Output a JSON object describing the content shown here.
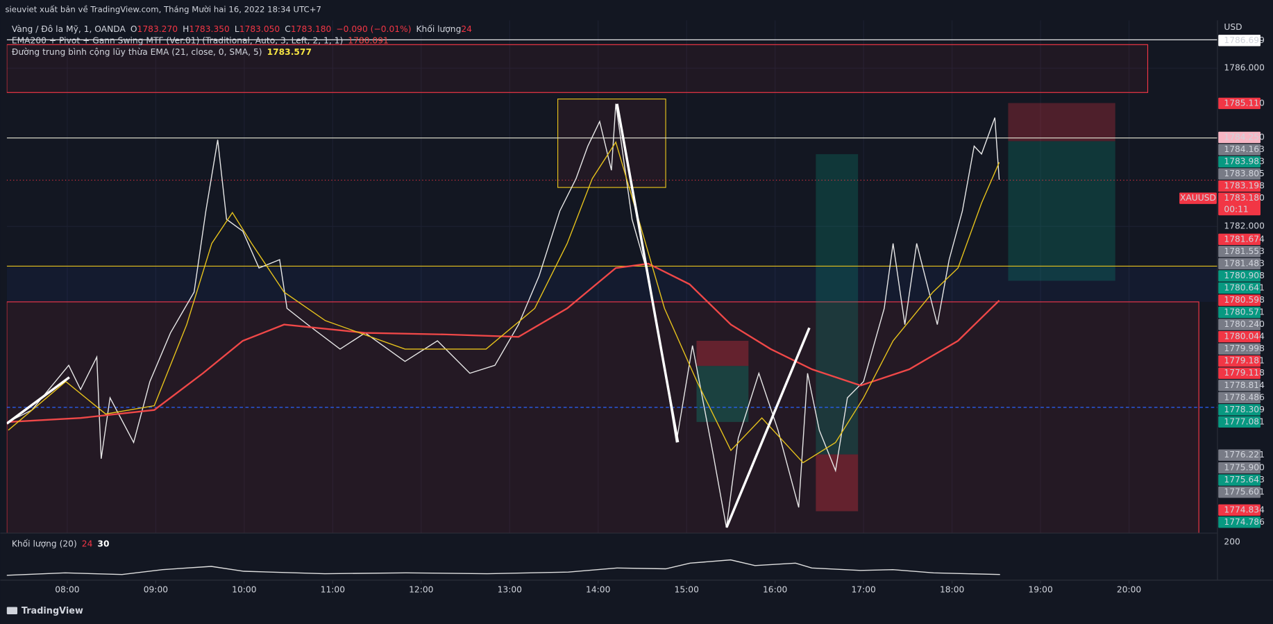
{
  "header": "sieuviet xuất bản về TradingView.com, Tháng Mười hai 16, 2022 18:34 UTC+7",
  "footer": "TradingView",
  "chart_data": {
    "type": "line",
    "currency": "USD",
    "legend": {
      "symbol": "Vàng / Đô la Mỹ, 1, OANDA",
      "ohlc": [
        {
          "key": "O",
          "value": "1783.270"
        },
        {
          "key": "H",
          "value": "1783.350"
        },
        {
          "key": "L",
          "value": "1783.050"
        },
        {
          "key": "C",
          "value": "1783.180"
        }
      ],
      "change": "−0.090 (−0.01%)",
      "volume_key": "Khối lượng",
      "volume": "24"
    },
    "xlim": [
      439,
      1260
    ],
    "ylim": [
      1774.25,
      1787.21
    ],
    "xticks": [
      {
        "value": 480,
        "label": "08:00"
      },
      {
        "value": 540,
        "label": "09:00"
      },
      {
        "value": 600,
        "label": "10:00"
      },
      {
        "value": 660,
        "label": "11:00"
      },
      {
        "value": 720,
        "label": "12:00"
      },
      {
        "value": 780,
        "label": "13:00"
      },
      {
        "value": 840,
        "label": "14:00"
      },
      {
        "value": 900,
        "label": "15:00"
      },
      {
        "value": 960,
        "label": "16:00"
      },
      {
        "value": 1020,
        "label": "17:00"
      },
      {
        "value": 1080,
        "label": "18:00"
      },
      {
        "value": 1140,
        "label": "19:00"
      },
      {
        "value": 1200,
        "label": "20:00"
      }
    ],
    "yticks": [
      {
        "value": 1786,
        "label": "1786.000"
      },
      {
        "value": 1782,
        "label": "1782.000"
      }
    ],
    "series": [
      {
        "name": "Vàng / Đô la Mỹ",
        "color": "#e8e8e8",
        "x": [
          440,
          456,
          481,
          489,
          500,
          503,
          509,
          525,
          536,
          550,
          566,
          574,
          582,
          588,
          599,
          610,
          624,
          629,
          643,
          665,
          682,
          709,
          731,
          753,
          770,
          786,
          800,
          814,
          825,
          833,
          841,
          849,
          852,
          863,
          874,
          882,
          893,
          904,
          918,
          927,
          935,
          949,
          962,
          976,
          982,
          990,
          1001,
          1009,
          1020,
          1034,
          1040,
          1048,
          1056,
          1070,
          1078,
          1087,
          1095,
          1100,
          1109,
          1112
        ],
        "values": [
          1777.06,
          1777.36,
          1778.49,
          1777.88,
          1778.7,
          1776.13,
          1777.67,
          1776.54,
          1778.08,
          1779.31,
          1780.34,
          1782.39,
          1784.19,
          1782.18,
          1781.88,
          1780.95,
          1781.16,
          1779.93,
          1779.52,
          1778.9,
          1779.31,
          1778.59,
          1779.11,
          1778.29,
          1778.49,
          1779.52,
          1780.75,
          1782.39,
          1783.21,
          1784.03,
          1784.65,
          1783.42,
          1785.1,
          1782.18,
          1780.75,
          1779.11,
          1776.54,
          1778.99,
          1776.24,
          1774.39,
          1776.65,
          1778.29,
          1776.85,
          1774.9,
          1778.29,
          1776.85,
          1775.83,
          1777.67,
          1778.08,
          1779.93,
          1781.57,
          1779.52,
          1781.57,
          1779.52,
          1781.16,
          1782.39,
          1784.03,
          1783.83,
          1784.75,
          1783.18
        ]
      },
      {
        "name": "EMA200 + Pivot + Gann Swing MTF (Ver.01) (Traditional, Auto, 3, Left, 2, 1, 1)",
        "last": "1780.091",
        "color": "#f04848",
        "x": [
          440,
          489,
          539,
          572,
          599,
          627,
          682,
          737,
          786,
          819,
          852,
          874,
          902,
          930,
          957,
          985,
          1018,
          1051,
          1084,
          1112
        ],
        "values": [
          1777.06,
          1777.16,
          1777.36,
          1778.29,
          1779.11,
          1779.52,
          1779.31,
          1779.27,
          1779.21,
          1779.93,
          1780.95,
          1781.06,
          1780.54,
          1779.52,
          1778.9,
          1778.39,
          1777.98,
          1778.39,
          1779.11,
          1780.13
        ]
      },
      {
        "name": "Đường trung bình cộng lũy thừa EMA (21, close, 0, SMA, 5)",
        "last": "1783.577",
        "color": "#e6c21c",
        "x": [
          440,
          479,
          506,
          539,
          561,
          578,
          592,
          605,
          627,
          655,
          709,
          764,
          797,
          819,
          836,
          852,
          869,
          885,
          907,
          930,
          951,
          979,
          1001,
          1020,
          1040,
          1067,
          1084,
          1100,
          1112
        ],
        "values": [
          1776.85,
          1778.08,
          1777.26,
          1777.47,
          1779.52,
          1781.57,
          1782.35,
          1781.57,
          1780.34,
          1779.62,
          1778.9,
          1778.9,
          1779.93,
          1781.57,
          1783.21,
          1784.13,
          1781.98,
          1779.93,
          1778.08,
          1776.34,
          1777.16,
          1776.03,
          1776.54,
          1777.67,
          1779.11,
          1780.34,
          1780.95,
          1782.59,
          1783.62
        ]
      }
    ],
    "price_labels": [
      {
        "value": 1786.699,
        "label": "1786.699",
        "color": "#ffffff"
      },
      {
        "value": 1785.11,
        "label": "1785.110",
        "color": "#f23645"
      },
      {
        "value": 1784.25,
        "label": "1784.250",
        "color": "#f7b6c4"
      },
      {
        "value": 1784.163,
        "label": "1784.163",
        "color": "#787b86"
      },
      {
        "value": 1783.983,
        "label": "1783.983",
        "color": "#089981"
      },
      {
        "value": 1783.805,
        "label": "1783.805",
        "color": "#787b86"
      },
      {
        "value": 1783.198,
        "label": "1783.198",
        "color": "#f23645"
      },
      {
        "value": 1781.674,
        "label": "1781.674",
        "color": "#f23645"
      },
      {
        "value": 1781.553,
        "label": "1781.553",
        "color": "#787b86"
      },
      {
        "value": 1781.483,
        "label": "1781.483",
        "color": "#787b86"
      },
      {
        "value": 1780.908,
        "label": "1780.908",
        "color": "#089981"
      },
      {
        "value": 1780.641,
        "label": "1780.641",
        "color": "#089981"
      },
      {
        "value": 1780.598,
        "label": "1780.598",
        "color": "#f23645"
      },
      {
        "value": 1780.571,
        "label": "1780.571",
        "color": "#089981"
      },
      {
        "value": 1780.24,
        "label": "1780.240",
        "color": "#787b86"
      },
      {
        "value": 1780.044,
        "label": "1780.044",
        "color": "#f23645"
      },
      {
        "value": 1779.998,
        "label": "1779.998",
        "color": "#787b86"
      },
      {
        "value": 1779.181,
        "label": "1779.181",
        "color": "#f23645"
      },
      {
        "value": 1779.118,
        "label": "1779.118",
        "color": "#f23645"
      },
      {
        "value": 1778.814,
        "label": "1778.814",
        "color": "#787b86"
      },
      {
        "value": 1778.486,
        "label": "1778.486",
        "color": "#787b86"
      },
      {
        "value": 1778.309,
        "label": "1778.309",
        "color": "#089981"
      },
      {
        "value": 1777.081,
        "label": "1777.081",
        "color": "#089981"
      },
      {
        "value": 1776.221,
        "label": "1776.221",
        "color": "#787b86"
      },
      {
        "value": 1775.9,
        "label": "1775.900",
        "color": "#787b86"
      },
      {
        "value": 1775.643,
        "label": "1775.643",
        "color": "#089981"
      },
      {
        "value": 1775.601,
        "label": "1775.601",
        "color": "#787b86"
      },
      {
        "value": 1774.834,
        "label": "1774.834",
        "color": "#f23645"
      },
      {
        "value": 1774.786,
        "label": "1774.786",
        "color": "#089981"
      }
    ],
    "last_price": {
      "symbol": "XAUUSD",
      "value": 1783.18,
      "label": "1783.180",
      "countdown": "00:11",
      "color": "#f23645"
    },
    "volume_legend": {
      "name": "Khối lượng (20)",
      "value": "24",
      "ma": "30"
    },
    "volume_axis_label": "200"
  }
}
